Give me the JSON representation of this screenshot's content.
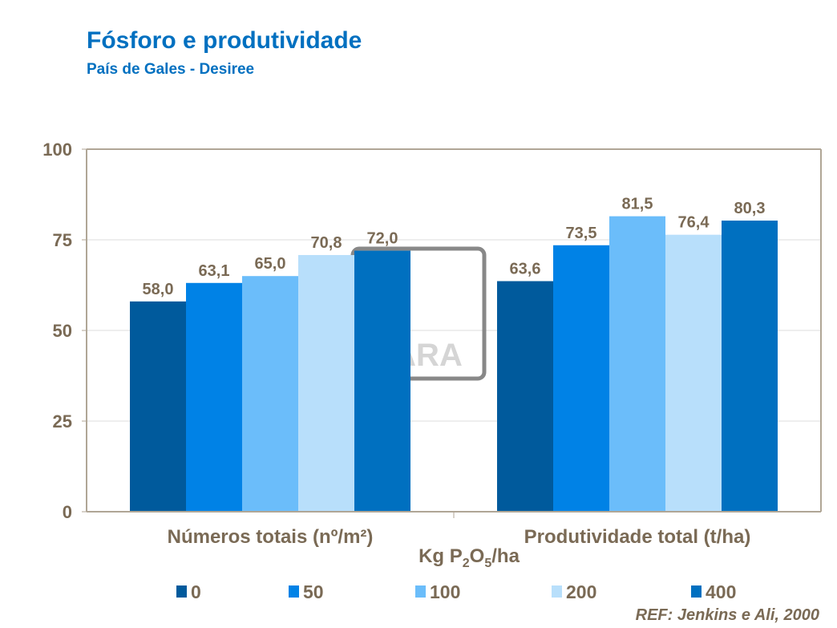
{
  "chart_data": {
    "type": "bar",
    "title": "Fósforo e produtividade",
    "subtitle": "País de Gales - Desiree",
    "categories": [
      "Números totais (nº/m²)",
      "Produtividade total (t/ha)"
    ],
    "xlabel": "Kg P2O5/ha",
    "ylim": [
      0,
      100
    ],
    "yticks": [
      0,
      25,
      50,
      75,
      100
    ],
    "grid": true,
    "legend": "bottom",
    "series": [
      {
        "name": "0",
        "color": "#005a9c",
        "values": [
          58.0,
          63.6
        ],
        "labels": [
          "58,0",
          "63,6"
        ]
      },
      {
        "name": "50",
        "color": "#0082e6",
        "values": [
          63.1,
          73.5
        ],
        "labels": [
          "63,1",
          "73,5"
        ]
      },
      {
        "name": "100",
        "color": "#6bbdfa",
        "values": [
          65.0,
          81.5
        ],
        "labels": [
          "65,0",
          "81,5"
        ]
      },
      {
        "name": "200",
        "color": "#b8dffb",
        "values": [
          70.8,
          76.4
        ],
        "labels": [
          "70,8",
          "76,4"
        ]
      },
      {
        "name": "400",
        "color": "#0070c0",
        "values": [
          72.0,
          80.3
        ],
        "labels": [
          "72,0",
          "80,3"
        ]
      }
    ],
    "reference": "REF: Jenkins e Ali, 2000",
    "watermark": "YARA"
  }
}
